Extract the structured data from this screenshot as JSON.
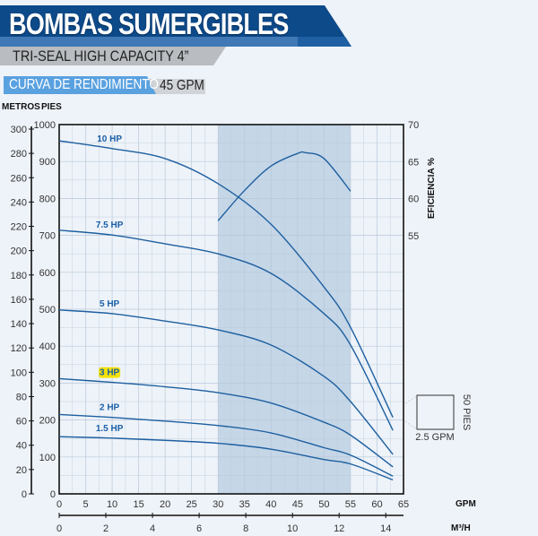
{
  "header": {
    "title": "BOMBAS SUMERGIBLES",
    "subtitle": "TRI-SEAL HIGH CAPACITY 4”",
    "section": "CURVA DE RENDIMIENTO",
    "flow_badge": "45 GPM"
  },
  "colors": {
    "banner": "#0d4a8a",
    "accent": "#5aa1e0",
    "curve": "#1d5f9f",
    "highlight": "#f3e10a",
    "shade": "#c5d6e7"
  },
  "chart_data": {
    "type": "line",
    "xlabel": "GPM",
    "x2label": "M³/H",
    "ylabel_left_outer": "METROS",
    "ylabel_left": "PIES",
    "ylabel_right": "EFICIENCIA %",
    "xlim": [
      0,
      65
    ],
    "ylim": [
      0,
      1000
    ],
    "y_outer_lim": [
      0,
      300
    ],
    "y_right_lim": [
      50,
      70
    ],
    "x2lim": [
      0,
      14.76
    ],
    "x_ticks": [
      0,
      5,
      10,
      15,
      20,
      25,
      30,
      35,
      40,
      45,
      50,
      55,
      60,
      65
    ],
    "x2_ticks": [
      0,
      2,
      4,
      6,
      8,
      10,
      12,
      14
    ],
    "y_ticks": [
      0,
      100,
      200,
      300,
      400,
      500,
      600,
      700,
      800,
      900,
      1000
    ],
    "y_outer_ticks": [
      0,
      20,
      40,
      60,
      80,
      100,
      120,
      140,
      160,
      180,
      200,
      220,
      240,
      260,
      280,
      300
    ],
    "y_right_ticks": [
      55,
      60,
      65,
      70
    ],
    "grid": true,
    "shaded_range": [
      30,
      55
    ],
    "highlighted_series": "3 HP",
    "series": [
      {
        "name": "10 HP",
        "x": [
          0,
          10,
          20,
          30,
          40,
          50,
          55,
          63
        ],
        "y": [
          956,
          935,
          908,
          840,
          730,
          560,
          451,
          207
        ]
      },
      {
        "name": "7.5 HP",
        "x": [
          0,
          10,
          20,
          30,
          40,
          50,
          55,
          63
        ],
        "y": [
          714,
          701,
          677,
          650,
          597,
          488,
          403,
          172
        ]
      },
      {
        "name": "5 HP",
        "x": [
          0,
          10,
          20,
          30,
          40,
          50,
          55,
          63
        ],
        "y": [
          498,
          488,
          468,
          444,
          403,
          318,
          250,
          107
        ]
      },
      {
        "name": "3 HP",
        "x": [
          0,
          10,
          20,
          30,
          40,
          50,
          55,
          63
        ],
        "y": [
          312,
          302,
          290,
          274,
          246,
          194,
          159,
          73
        ]
      },
      {
        "name": "2 HP",
        "x": [
          0,
          10,
          20,
          30,
          40,
          50,
          55,
          63
        ],
        "y": [
          215,
          207,
          197,
          185,
          165,
          125,
          105,
          48
        ]
      },
      {
        "name": "1.5 HP",
        "x": [
          0,
          10,
          20,
          30,
          40,
          50,
          55,
          63
        ],
        "y": [
          155,
          151,
          145,
          137,
          121,
          93,
          81,
          38
        ]
      }
    ],
    "efficiency": {
      "x": [
        30,
        35,
        40,
        45,
        46.5,
        50,
        55
      ],
      "y": [
        57,
        61.1,
        64.4,
        66.1,
        66.2,
        65.4,
        61
      ]
    },
    "scale_box": {
      "width_label": "2.5 GPM",
      "height_label": "50 PIES"
    }
  }
}
